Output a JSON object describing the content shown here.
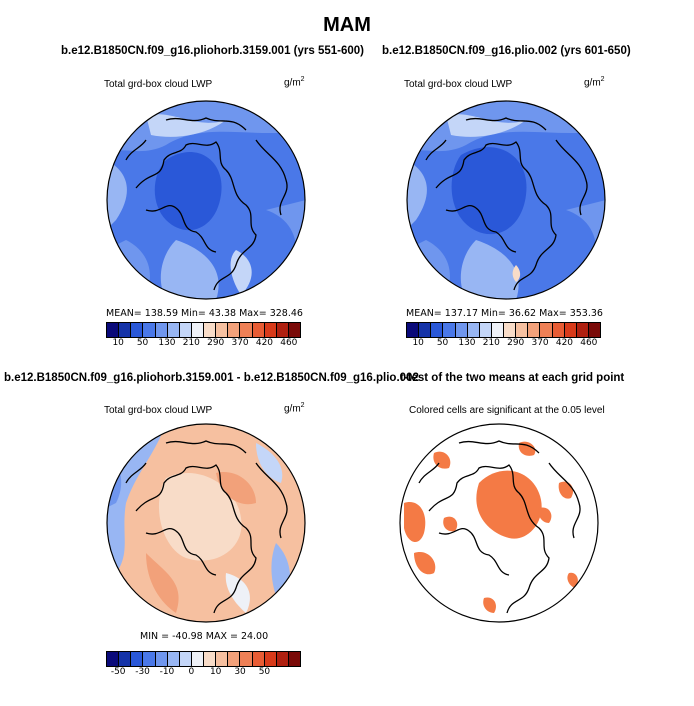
{
  "figure": {
    "title": "MAM"
  },
  "panels": [
    {
      "id": "p1",
      "title": "b.e12.B1850CN.f09_g16.pliohorb.3159.001 (yrs 551-600)",
      "left_label": "Total grd-box cloud LWP",
      "right_label": "g/m",
      "right_label_sup": "2",
      "stats": "MEAN= 138.59   Min=  43.38   Max= 328.46",
      "stats_values": {
        "mean": 138.59,
        "min": 43.38,
        "max": 328.46
      }
    },
    {
      "id": "p2",
      "title": "b.e12.B1850CN.f09_g16.plio.002 (yrs 601-650)",
      "left_label": "Total grd-box cloud LWP",
      "right_label": "g/m",
      "right_label_sup": "2",
      "stats": "MEAN= 137.17   Min=  36.62   Max= 353.36",
      "stats_values": {
        "mean": 137.17,
        "min": 36.62,
        "max": 353.36
      }
    },
    {
      "id": "p3",
      "title": "b.e12.B1850CN.f09_g16.pliohorb.3159.001 - b.e12.B1850CN.f09_g16.plio.002",
      "left_label": "Total grd-box cloud LWP",
      "right_label": "g/m",
      "right_label_sup": "2",
      "stats": "MIN = -40.98  MAX =   24.00",
      "stats_values": {
        "min": -40.98,
        "max": 24.0
      }
    },
    {
      "id": "p4",
      "title": "t-test of the two means at each grid point",
      "left_label": "Colored cells are significant at the 0.05 level"
    }
  ],
  "colorbars": {
    "absolute": {
      "labels": [
        "10",
        "50",
        "130",
        "210",
        "290",
        "370",
        "420",
        "460"
      ],
      "colors": [
        "#0a0a7a",
        "#1533a8",
        "#2a58d8",
        "#4a78e8",
        "#6f96ee",
        "#98b6f3",
        "#c4d6f8",
        "#eef1f7",
        "#f8dcc8",
        "#f6c0a0",
        "#f2a17a",
        "#ee8056",
        "#e85c34",
        "#d83a1a",
        "#b02010",
        "#7a0a08"
      ]
    },
    "difference": {
      "labels": [
        "-50",
        "-30",
        "-10",
        "0",
        "10",
        "30",
        "50"
      ],
      "colors": [
        "#0a0a7a",
        "#1533a8",
        "#2a58d8",
        "#4a78e8",
        "#6f96ee",
        "#98b6f3",
        "#c4d6f8",
        "#eef1f7",
        "#f8dcc8",
        "#f6c0a0",
        "#f2a17a",
        "#ee8056",
        "#e85c34",
        "#d83a1a",
        "#b02010",
        "#7a0a08"
      ]
    }
  },
  "significance_color": "#f47a45"
}
